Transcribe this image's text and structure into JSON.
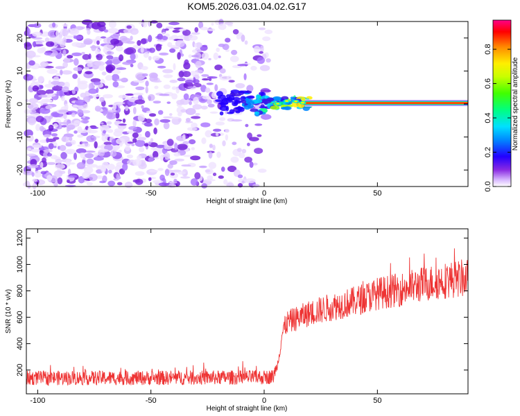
{
  "title": "KOM5.2026.031.04.02.G17",
  "chart_data": [
    {
      "type": "heatmap",
      "xlabel": "Height of straight line (km)",
      "ylabel": "Frequency (Hz)",
      "xlim": [
        -105,
        90
      ],
      "ylim": [
        -25,
        25
      ],
      "xticks": [
        -100,
        -50,
        0,
        50
      ],
      "yticks": [
        -20,
        -10,
        0,
        10,
        20
      ],
      "colorbar": {
        "label": "Normalized spectral amplitude",
        "range": [
          0,
          0.97
        ],
        "ticks": [
          0.0,
          0.2,
          0.4,
          0.6,
          0.8
        ]
      },
      "features": {
        "noise_region_km": [
          -105,
          2
        ],
        "transition_region_km": [
          -20,
          20
        ],
        "carrier_start_km": 18,
        "carrier_frequency_hz": 0.3
      }
    },
    {
      "type": "line",
      "xlabel": "Height of straight line (km)",
      "ylabel": "SNR (10 * v/v)",
      "xlim": [
        -105,
        90
      ],
      "ylim": [
        20,
        1270
      ],
      "xticks": [
        -100,
        -50,
        0,
        50
      ],
      "yticks": [
        200,
        400,
        600,
        800,
        1000,
        1200
      ],
      "color": "#ee3333",
      "series": [
        {
          "name": "SNR",
          "x": [
            -105,
            -50,
            0,
            4,
            6,
            8,
            10,
            20,
            30,
            40,
            50,
            60,
            70,
            80,
            90
          ],
          "mean": [
            140,
            140,
            145,
            150,
            250,
            480,
            560,
            630,
            680,
            720,
            780,
            810,
            850,
            880,
            900
          ]
        }
      ]
    }
  ]
}
